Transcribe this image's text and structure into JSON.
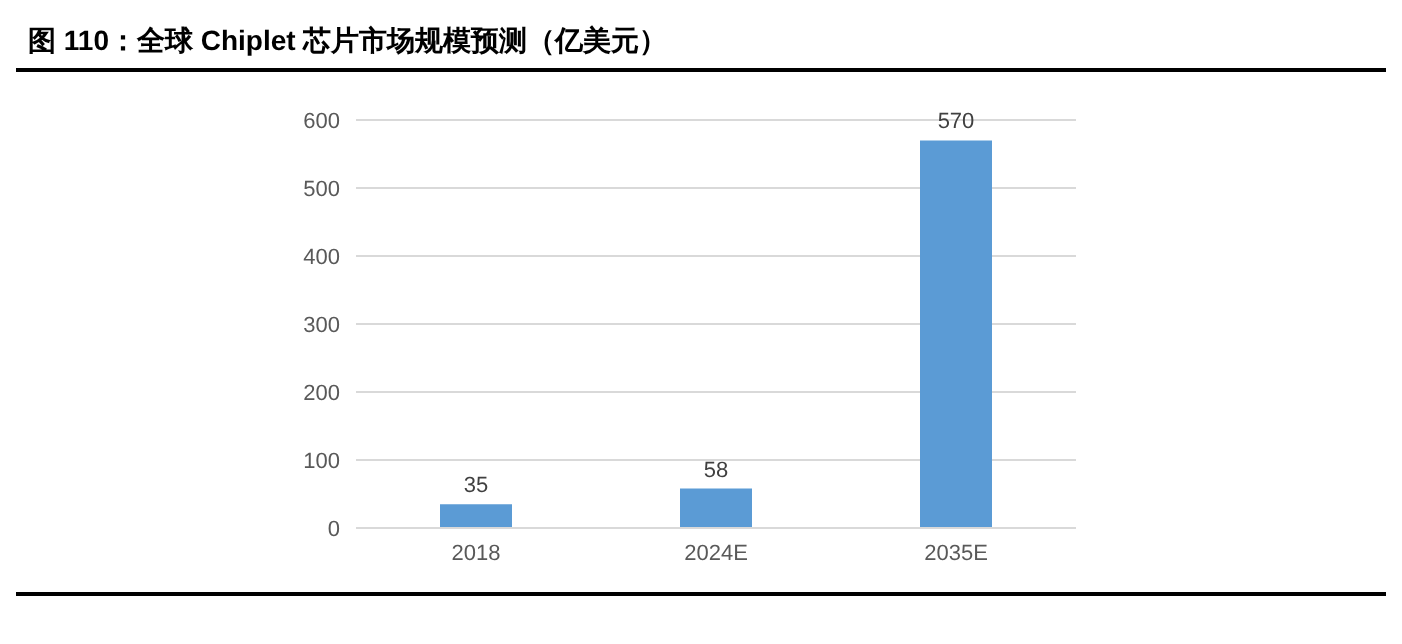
{
  "chart_data": {
    "type": "bar",
    "title": "图 110：全球 Chiplet 芯片市场规模预测（亿美元）",
    "categories": [
      "2018",
      "2024E",
      "2035E"
    ],
    "values": [
      35,
      58,
      570
    ],
    "color": "#5b9bd5",
    "ylim": [
      0,
      600
    ],
    "yticks": [
      0,
      100,
      200,
      300,
      400,
      500,
      600
    ],
    "grid": "y",
    "data_labels": true
  }
}
